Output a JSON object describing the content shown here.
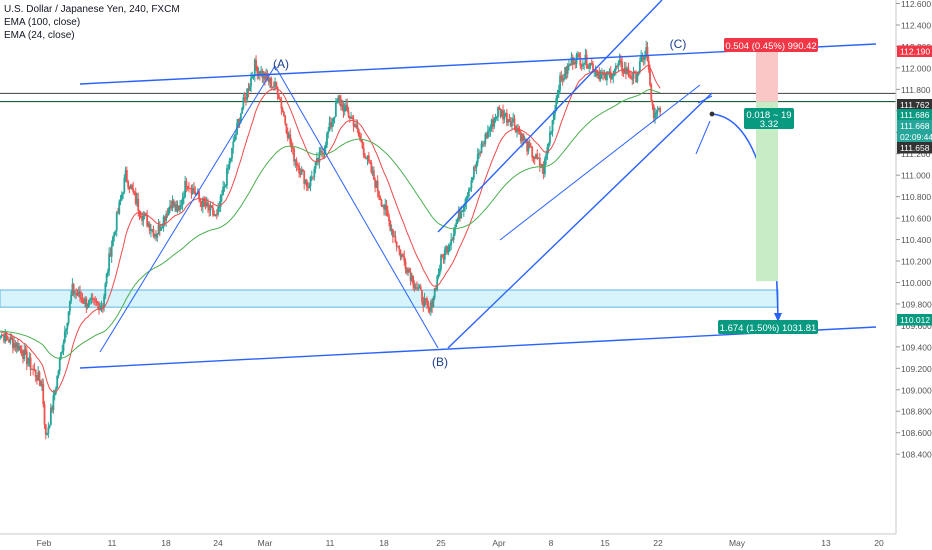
{
  "legend": {
    "title": "U.S. Dollar / Japanese Yen, 240, FXCM",
    "ema1": "EMA (100, close)",
    "ema2": "EMA (24, close)"
  },
  "colors": {
    "up": "#26a69a",
    "down": "#ef5350",
    "ema24": "#f04a4a",
    "ema100": "#4caf50",
    "drawing": "#2962ff",
    "zone_fill": "#d7f3fb",
    "profit_fill": "#c8ecc5",
    "loss_fill": "#fbc6c6"
  },
  "chart_data": {
    "type": "candlestick",
    "symbol": "USDJPY",
    "timeframe": "240",
    "x_ticks": [
      "Feb",
      "11",
      "18",
      "24",
      "Mar",
      "11",
      "18",
      "25",
      "Apr",
      "8",
      "15",
      "22",
      "May",
      "13",
      "20"
    ],
    "y_ticks": [
      "112.600",
      "112.400",
      "112.200",
      "112.000",
      "111.800",
      "111.600",
      "111.400",
      "111.200",
      "111.000",
      "110.800",
      "110.600",
      "110.400",
      "110.200",
      "110.000",
      "109.800",
      "109.600",
      "109.400",
      "109.200",
      "109.000",
      "108.800",
      "108.600",
      "108.400"
    ],
    "ylim": [
      108.3,
      112.7
    ],
    "price_tags": [
      {
        "label": "112.190",
        "value": 112.19,
        "kind": "red"
      },
      {
        "label": "111.762",
        "value": 111.762,
        "kind": "dark"
      },
      {
        "label": "111.686",
        "value": 111.686,
        "kind": "green"
      },
      {
        "label": "111.668",
        "value": 111.668,
        "kind": "teal"
      },
      {
        "label": "02:09:44",
        "value": 111.62,
        "kind": "teal"
      },
      {
        "label": "111.658",
        "value": 111.55,
        "kind": "dark"
      },
      {
        "label": "110.012",
        "value": 110.012,
        "kind": "green"
      }
    ],
    "wave_labels": [
      "(A)",
      "(B)",
      "(C)"
    ],
    "wave_points": [
      {
        "label": "(A)",
        "date": "Mar 1",
        "price": 112.02
      },
      {
        "label": "(B)",
        "date": "Mar 25",
        "price": 109.72
      },
      {
        "label": "(C)",
        "date": "Apr 24",
        "price": 112.17
      }
    ],
    "position": {
      "loss_label": "0.504 (0.45%) 990.42",
      "entry_label_line1": "0.018 ~ 19",
      "entry_label_line2": "3.32",
      "profit_label": "1.674 (1.50%) 1031.81",
      "entry": 111.686,
      "stop": 112.19,
      "target": 110.012
    },
    "support_zone": {
      "top": 109.93,
      "bottom": 109.77
    },
    "horizontal_levels": [
      111.762,
      111.686
    ],
    "grid": false,
    "legend_position": "top-left"
  }
}
